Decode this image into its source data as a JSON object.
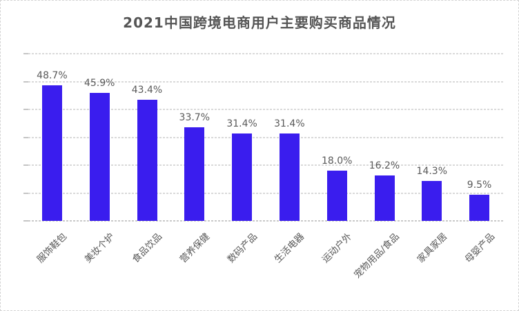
{
  "chart_data": {
    "type": "bar",
    "title": "2021中国跨境电商用户主要购买商品情况",
    "categories": [
      "服饰鞋包",
      "美妆个护",
      "食品饮品",
      "营养保健",
      "数码产品",
      "生活电器",
      "运动户外",
      "宠物用品/食品",
      "家具家居",
      "母婴产品"
    ],
    "values": [
      48.7,
      45.9,
      43.4,
      33.7,
      31.4,
      31.4,
      18.0,
      16.2,
      14.3,
      9.5
    ],
    "value_labels": [
      "48.7%",
      "45.9%",
      "43.4%",
      "33.7%",
      "31.4%",
      "31.4%",
      "18.0%",
      "16.2%",
      "14.3%",
      "9.5%"
    ],
    "unit": "%",
    "xlabel": "",
    "ylabel": "",
    "ylim": [
      0,
      60
    ],
    "grid_step": 10,
    "grid": "horizontal-dashed",
    "legend": false,
    "y_tick_labels_visible": false,
    "x_label_rotation_deg": 45
  },
  "colors": {
    "bar_fill": "#3a1dee",
    "gridline": "#d9d9d9",
    "axis_line": "#c9c9c9",
    "label_text": "#595959",
    "title_text": "#555555",
    "background": "#ffffff",
    "border": "#d4d4d4"
  }
}
